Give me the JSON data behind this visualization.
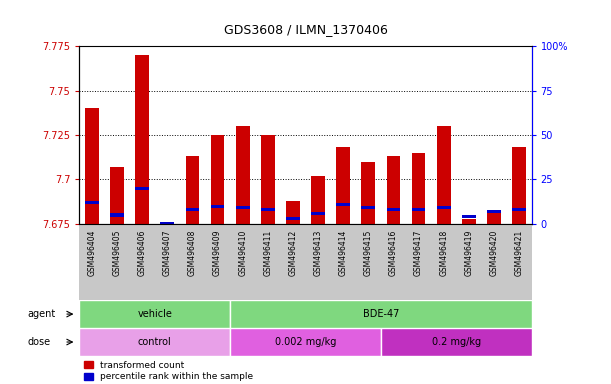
{
  "title": "GDS3608 / ILMN_1370406",
  "samples": [
    "GSM496404",
    "GSM496405",
    "GSM496406",
    "GSM496407",
    "GSM496408",
    "GSM496409",
    "GSM496410",
    "GSM496411",
    "GSM496412",
    "GSM496413",
    "GSM496414",
    "GSM496415",
    "GSM496416",
    "GSM496417",
    "GSM496418",
    "GSM496419",
    "GSM496420",
    "GSM496421"
  ],
  "transformed_count": [
    7.74,
    7.707,
    7.77,
    7.675,
    7.713,
    7.725,
    7.73,
    7.725,
    7.688,
    7.702,
    7.718,
    7.71,
    7.713,
    7.715,
    7.73,
    7.678,
    7.682,
    7.718
  ],
  "percentile_rank": [
    12,
    5,
    20,
    0,
    8,
    10,
    9,
    8,
    3,
    6,
    11,
    9,
    8,
    8,
    9,
    4,
    7,
    8
  ],
  "ymin": 7.675,
  "ymax": 7.775,
  "yticks": [
    7.675,
    7.7,
    7.725,
    7.75,
    7.775
  ],
  "right_yticks": [
    0,
    25,
    50,
    75,
    100
  ],
  "bar_width": 0.55,
  "red_color": "#CC0000",
  "blue_color": "#0000CC",
  "tick_bg_color": "#C8C8C8",
  "plot_bg": "#FFFFFF",
  "agent_vehicle_color": "#7FD87F",
  "agent_bde47_color": "#7FD87F",
  "dose_control_color": "#E8A0E8",
  "dose_002_color": "#E060E0",
  "dose_02_color": "#C030C0",
  "legend_red": "transformed count",
  "legend_blue": "percentile rank within the sample"
}
